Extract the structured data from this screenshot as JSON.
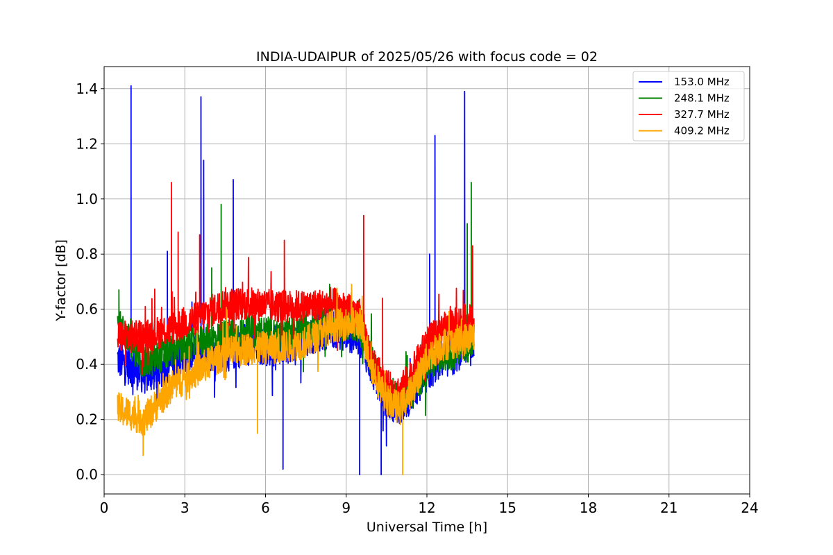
{
  "chart_data": {
    "type": "line",
    "title": "INDIA-UDAIPUR of 2025/05/26 with focus code = 02",
    "xlabel": "Universal Time [h]",
    "ylabel": "Y-factor [dB]",
    "xlim": [
      0,
      24
    ],
    "ylim": [
      -0.07,
      1.48
    ],
    "xticks": [
      0,
      3,
      6,
      9,
      12,
      15,
      18,
      21,
      24
    ],
    "xtick_labels": [
      "0",
      "3",
      "6",
      "9",
      "12",
      "15",
      "18",
      "21",
      "24"
    ],
    "yticks": [
      0.0,
      0.2,
      0.4,
      0.6,
      0.8,
      1.0,
      1.2,
      1.4
    ],
    "ytick_labels": [
      "0.0",
      "0.2",
      "0.4",
      "0.6",
      "0.8",
      "1.0",
      "1.2",
      "1.4"
    ],
    "grid": true,
    "legend_position": "top-right",
    "x_range_of_data": [
      0.5,
      13.75
    ],
    "series": [
      {
        "name": "153.0 MHz",
        "color": "#0000ff",
        "baseline": [
          [
            0.5,
            0.42
          ],
          [
            1.5,
            0.36
          ],
          [
            2.5,
            0.4
          ],
          [
            3.5,
            0.45
          ],
          [
            4.5,
            0.44
          ],
          [
            5.5,
            0.47
          ],
          [
            6.5,
            0.46
          ],
          [
            7.5,
            0.5
          ],
          [
            8.5,
            0.53
          ],
          [
            9.5,
            0.5
          ],
          [
            10.0,
            0.38
          ],
          [
            10.5,
            0.27
          ],
          [
            11.0,
            0.25
          ],
          [
            11.5,
            0.3
          ],
          [
            12.0,
            0.36
          ],
          [
            12.5,
            0.42
          ],
          [
            13.0,
            0.43
          ],
          [
            13.75,
            0.5
          ]
        ],
        "spread": 0.07,
        "spikes": [
          [
            1.0,
            1.41
          ],
          [
            3.6,
            1.37
          ],
          [
            3.7,
            1.14
          ],
          [
            4.8,
            1.07
          ],
          [
            12.3,
            1.23
          ],
          [
            13.4,
            1.39
          ],
          [
            12.1,
            0.8
          ],
          [
            2.35,
            0.81
          ],
          [
            6.65,
            0.02
          ],
          [
            10.3,
            0.0
          ],
          [
            9.5,
            0.0
          ]
        ]
      },
      {
        "name": "248.1 MHz",
        "color": "#008000",
        "baseline": [
          [
            0.5,
            0.55
          ],
          [
            1.5,
            0.4
          ],
          [
            2.5,
            0.45
          ],
          [
            3.5,
            0.48
          ],
          [
            4.5,
            0.5
          ],
          [
            5.5,
            0.52
          ],
          [
            6.5,
            0.5
          ],
          [
            7.5,
            0.53
          ],
          [
            8.5,
            0.56
          ],
          [
            9.5,
            0.53
          ],
          [
            10.0,
            0.4
          ],
          [
            10.5,
            0.28
          ],
          [
            11.0,
            0.27
          ],
          [
            11.5,
            0.32
          ],
          [
            12.0,
            0.38
          ],
          [
            12.5,
            0.43
          ],
          [
            13.0,
            0.44
          ],
          [
            13.75,
            0.48
          ]
        ],
        "spread": 0.06,
        "spikes": [
          [
            4.35,
            0.98
          ],
          [
            13.65,
            1.06
          ],
          [
            13.5,
            0.91
          ],
          [
            0.55,
            0.67
          ],
          [
            4.0,
            0.75
          ]
        ]
      },
      {
        "name": "327.7 MHz",
        "color": "#ff0000",
        "baseline": [
          [
            0.5,
            0.5
          ],
          [
            1.5,
            0.5
          ],
          [
            2.5,
            0.53
          ],
          [
            3.5,
            0.57
          ],
          [
            4.5,
            0.62
          ],
          [
            5.5,
            0.62
          ],
          [
            6.5,
            0.61
          ],
          [
            7.5,
            0.61
          ],
          [
            8.5,
            0.62
          ],
          [
            9.5,
            0.58
          ],
          [
            10.0,
            0.4
          ],
          [
            10.5,
            0.32
          ],
          [
            11.0,
            0.3
          ],
          [
            11.5,
            0.38
          ],
          [
            12.0,
            0.48
          ],
          [
            12.5,
            0.52
          ],
          [
            13.0,
            0.55
          ],
          [
            13.75,
            0.56
          ]
        ],
        "spread": 0.06,
        "spikes": [
          [
            2.5,
            1.06
          ],
          [
            2.75,
            0.88
          ],
          [
            3.55,
            0.87
          ],
          [
            9.65,
            0.94
          ],
          [
            6.7,
            0.85
          ],
          [
            10.35,
            0.64
          ],
          [
            13.7,
            0.83
          ]
        ]
      },
      {
        "name": "409.2 MHz",
        "color": "#ffa500",
        "baseline": [
          [
            0.5,
            0.24
          ],
          [
            1.5,
            0.2
          ],
          [
            2.5,
            0.32
          ],
          [
            3.5,
            0.38
          ],
          [
            4.5,
            0.44
          ],
          [
            5.5,
            0.46
          ],
          [
            6.5,
            0.46
          ],
          [
            7.5,
            0.48
          ],
          [
            8.5,
            0.54
          ],
          [
            9.5,
            0.55
          ],
          [
            10.0,
            0.38
          ],
          [
            10.5,
            0.27
          ],
          [
            11.0,
            0.24
          ],
          [
            11.5,
            0.32
          ],
          [
            12.0,
            0.42
          ],
          [
            12.5,
            0.47
          ],
          [
            13.0,
            0.48
          ],
          [
            13.75,
            0.5
          ]
        ],
        "spread": 0.06,
        "spikes": [
          [
            1.45,
            0.07
          ],
          [
            11.1,
            0.0
          ],
          [
            9.2,
            0.69
          ],
          [
            5.7,
            0.15
          ]
        ]
      }
    ]
  }
}
